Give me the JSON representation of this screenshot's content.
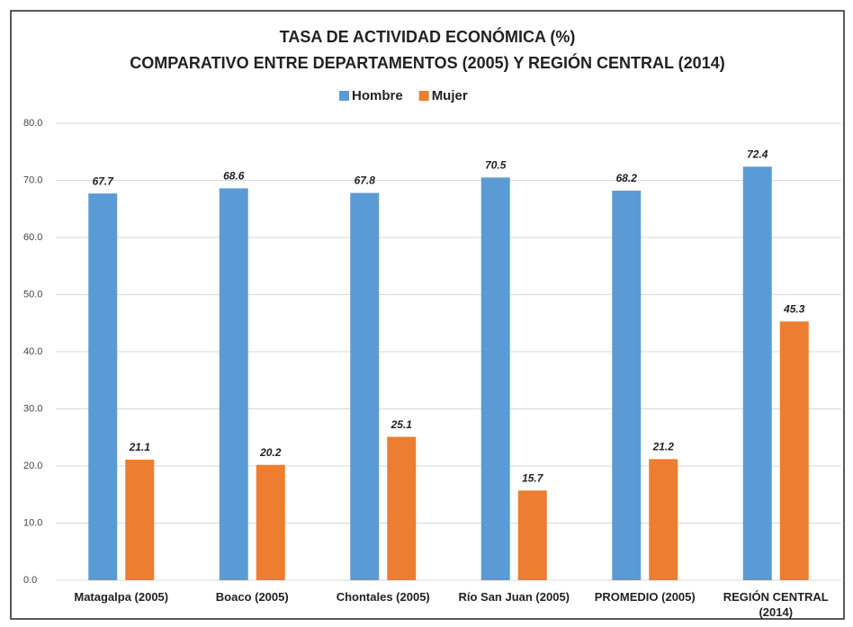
{
  "chart_data": {
    "type": "bar",
    "title": "TASA DE ACTIVIDAD ECONÓMICA (%)",
    "subtitle": "COMPARATIVO ENTRE DEPARTAMENTOS  (2005) Y REGIÓN CENTRAL (2014)",
    "categories": [
      "Matagalpa (2005)",
      "Boaco (2005)",
      "Chontales (2005)",
      "Río San Juan (2005)",
      "PROMEDIO (2005)",
      "REGIÓN CENTRAL (2014)"
    ],
    "series": [
      {
        "name": "Hombre",
        "color": "#5b9bd5",
        "values": [
          67.7,
          68.6,
          67.8,
          70.5,
          68.2,
          72.4
        ]
      },
      {
        "name": "Mujer",
        "color": "#ed7d31",
        "values": [
          21.1,
          20.2,
          25.1,
          15.7,
          21.2,
          45.3
        ]
      }
    ],
    "ylim": [
      0,
      80
    ],
    "yticks": [
      {
        "value": 0,
        "label": "0.0"
      },
      {
        "value": 10,
        "label": "10.0"
      },
      {
        "value": 20,
        "label": "20.0"
      },
      {
        "value": 30,
        "label": "30.0"
      },
      {
        "value": 40,
        "label": "40.0"
      },
      {
        "value": 50,
        "label": "50.0"
      },
      {
        "value": 60,
        "label": "60.0"
      },
      {
        "value": 70,
        "label": "70.0"
      },
      {
        "value": 80,
        "label": "80.0"
      }
    ],
    "grid": true,
    "legend": "top"
  }
}
